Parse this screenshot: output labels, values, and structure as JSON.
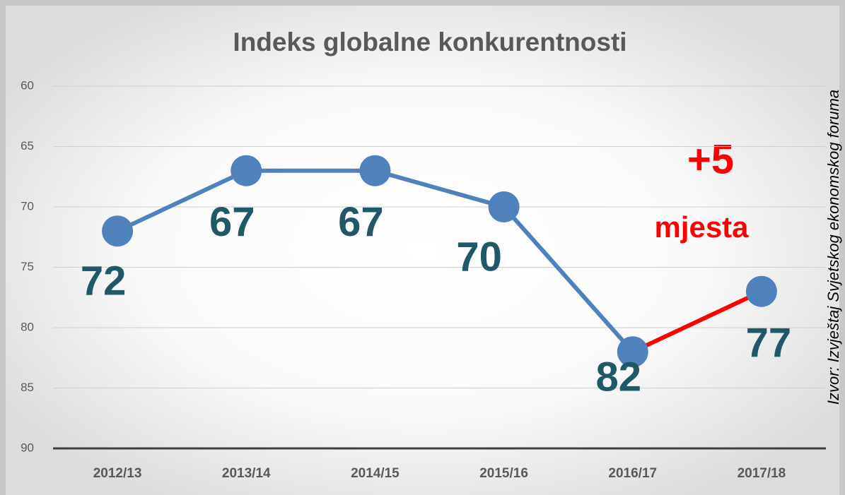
{
  "chart_data": {
    "type": "line",
    "title": "Indeks globalne konkurentnosti",
    "categories": [
      "2012/13",
      "2013/14",
      "2014/15",
      "2015/16",
      "2016/17",
      "2017/18"
    ],
    "series": [
      {
        "values": [
          72,
          67,
          67,
          70,
          82,
          77
        ],
        "color": "#4f81bd"
      }
    ],
    "segment_colors": [
      "#4f81bd",
      "#4f81bd",
      "#4f81bd",
      "#4f81bd",
      "#ff0000"
    ],
    "ylim": [
      60,
      90
    ],
    "y_inverted": true,
    "yticks": [
      60,
      65,
      70,
      75,
      80,
      85,
      90
    ],
    "grid": true,
    "annotations": [
      "+5",
      "mjesta"
    ],
    "source": "Izvor: Izvještaj Svjetskog ekonomskog foruma"
  }
}
